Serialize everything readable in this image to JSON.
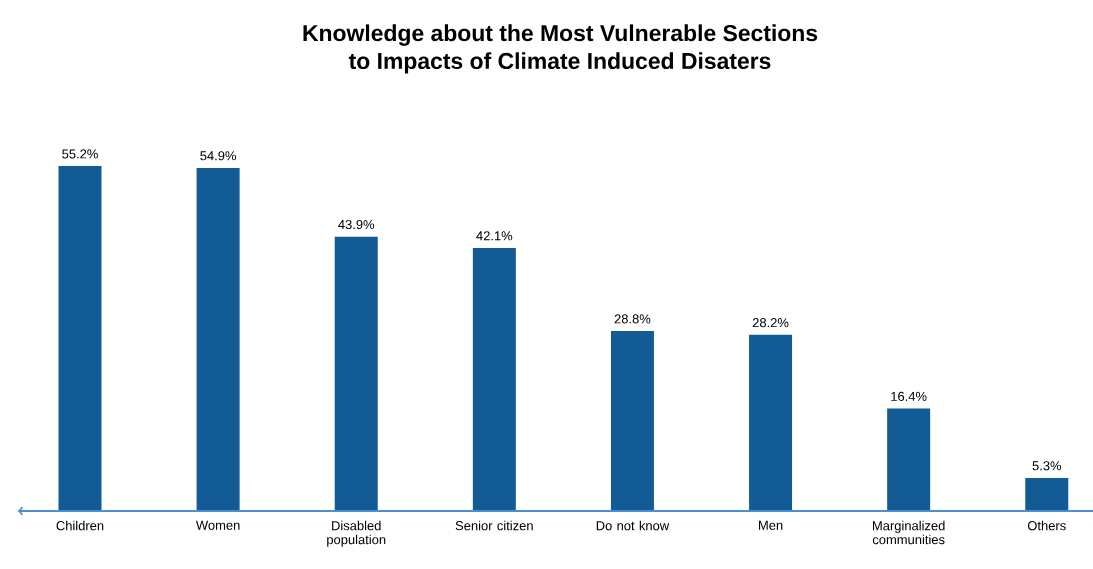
{
  "chart_data": {
    "type": "bar",
    "title": "Knowledge about the Most Vulnerable Sections\nto Impacts of Climate Induced Disaters",
    "categories": [
      "Children",
      "Women",
      "Disabled population",
      "Senior citizen",
      "Do not know",
      "Men",
      "Marginalized communities",
      "Others"
    ],
    "values": [
      55.2,
      54.9,
      43.9,
      42.1,
      28.8,
      28.2,
      16.4,
      5.3
    ],
    "value_labels": [
      "55.2%",
      "54.9%",
      "43.9%",
      "42.1%",
      "28.8%",
      "28.2%",
      "16.4%",
      "5.3%"
    ],
    "color": "#135b95"
  }
}
